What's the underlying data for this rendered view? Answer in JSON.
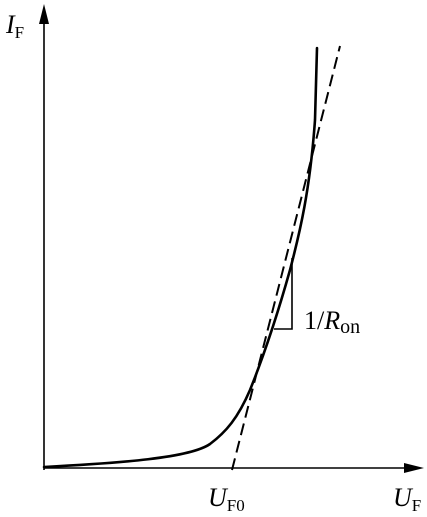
{
  "labels": {
    "y_axis": {
      "main": "I",
      "sub": "F"
    },
    "x_axis": {
      "main": "U",
      "sub": "F"
    },
    "threshold": {
      "main": "U",
      "sub": "F0"
    },
    "slope": {
      "prefix": "1/",
      "main": "R",
      "sub": "on"
    }
  },
  "colors": {
    "ink": "#000000",
    "background": "#ffffff"
  }
}
